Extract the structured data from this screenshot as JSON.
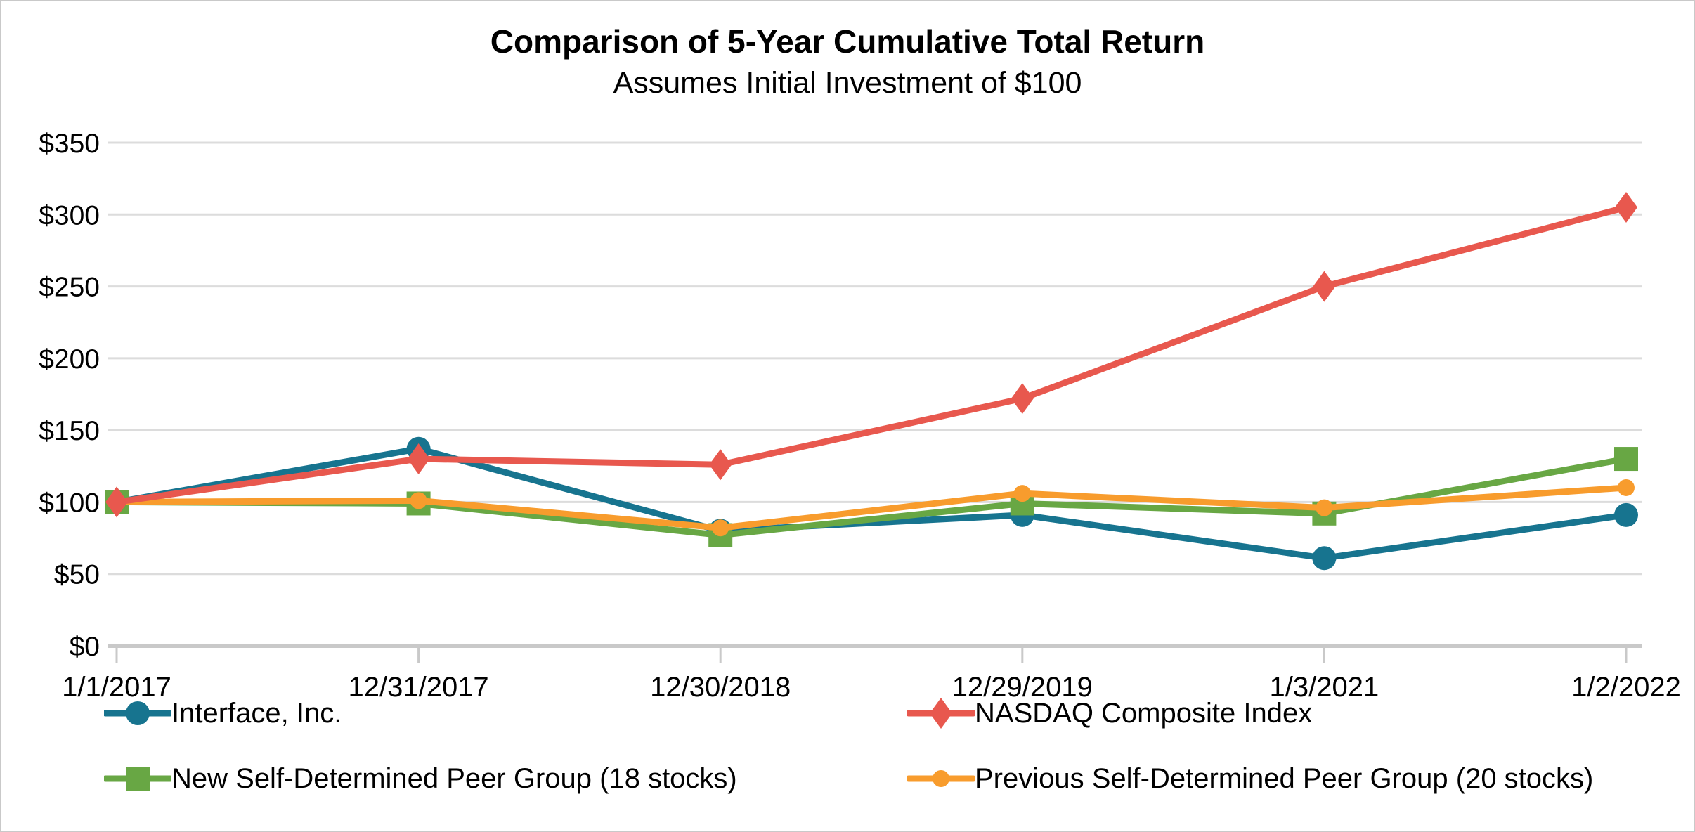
{
  "window": {
    "background": "#ffffff",
    "border_color": "#c9c9c9"
  },
  "chart_data": {
    "type": "line",
    "title": "Comparison of 5-Year Cumulative Total Return",
    "subtitle": "Assumes Initial Investment of $100",
    "categories": [
      "1/1/2017",
      "12/31/2017",
      "12/30/2018",
      "12/29/2019",
      "1/3/2021",
      "1/2/2022"
    ],
    "series": [
      {
        "name": "Interface, Inc.",
        "color": "#17748F",
        "marker": "circle",
        "values": [
          100,
          137,
          80,
          91,
          61,
          91
        ]
      },
      {
        "name": "NASDAQ Composite Index",
        "color": "#E8584E",
        "marker": "diamond",
        "values": [
          100,
          130,
          126,
          172,
          250,
          305
        ]
      },
      {
        "name": "New Self-Determined Peer Group (18 stocks)",
        "color": "#68A744",
        "marker": "square",
        "values": [
          100,
          99,
          77,
          99,
          92,
          130
        ]
      },
      {
        "name": "Previous Self-Determined Peer Group (20 stocks)",
        "color": "#F89C2D",
        "marker": "circle",
        "values": [
          100,
          101,
          82,
          106,
          96,
          110
        ]
      }
    ],
    "xlabel": "",
    "ylabel": "",
    "ylim": [
      0,
      350
    ],
    "ytick_step": 50,
    "y_tick_prefix": "$",
    "y_ticks": [
      "$0",
      "$50",
      "$100",
      "$150",
      "$200",
      "$250",
      "$300",
      "$350"
    ],
    "grid": "horizontal",
    "legend_position": "bottom",
    "gridline_color": "#DCDCDC",
    "axis_color": "#C9C9C9",
    "text_color": "#000000"
  }
}
